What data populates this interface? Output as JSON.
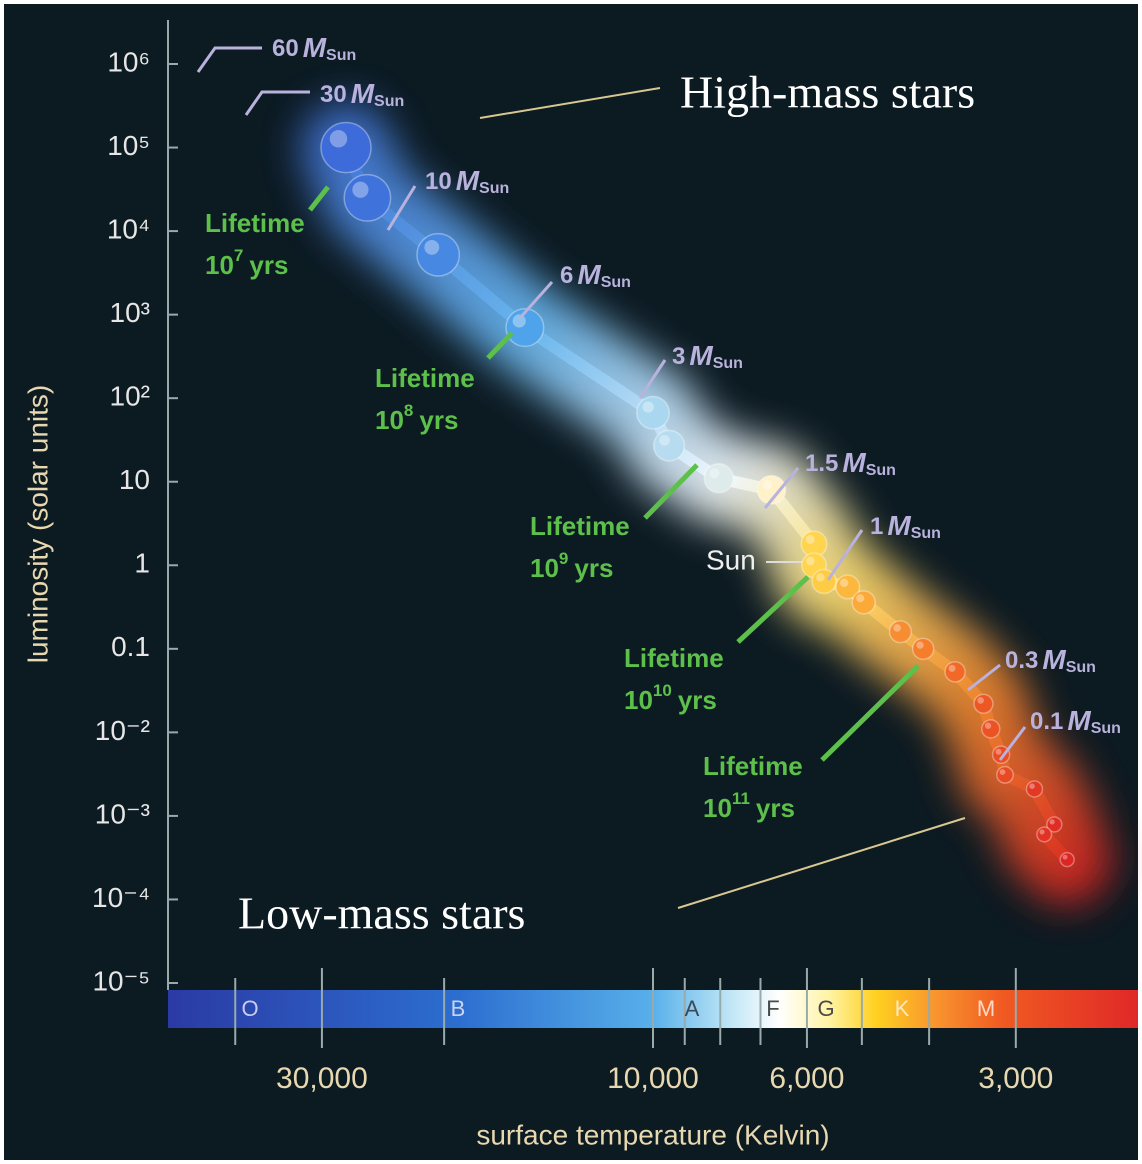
{
  "chart_data": {
    "type": "scatter",
    "x_label": "surface temperature (Kelvin)",
    "y_label": "luminosity (solar units)",
    "xscale": "log",
    "yscale": "log",
    "xlim": [
      50000,
      2000
    ],
    "ylim": [
      1e-05,
      1000000
    ],
    "xticks": [
      {
        "value": 30000,
        "label": "30,000"
      },
      {
        "value": 10000,
        "label": "10,000"
      },
      {
        "value": 6000,
        "label": "6,000"
      },
      {
        "value": 3000,
        "label": "3,000"
      }
    ],
    "minor_xticks": [
      40000,
      20000,
      9000,
      8000,
      7000,
      5000,
      4000
    ],
    "yticks": [
      {
        "value": 1000000,
        "label": "10⁶"
      },
      {
        "value": 100000,
        "label": "10⁵"
      },
      {
        "value": 10000,
        "label": "10⁴"
      },
      {
        "value": 1000,
        "label": "10³"
      },
      {
        "value": 100,
        "label": "10²"
      },
      10,
      1,
      0.1,
      {
        "value": 0.01,
        "label": "10⁻²"
      },
      {
        "value": 0.001,
        "label": "10⁻³"
      },
      {
        "value": 0.0001,
        "label": "10⁻⁴"
      },
      {
        "value": 1e-05,
        "label": "10⁻⁵"
      }
    ],
    "x": [
      27700,
      25800,
      20400,
      15300,
      10000,
      9480,
      8040,
      6750,
      5860,
      5860,
      5670,
      5240,
      4970,
      4400,
      4080,
      3670,
      3340,
      3260,
      3150,
      3110,
      2820,
      2640,
      2730,
      2530
    ],
    "values": [
      100000,
      25000,
      5200,
      700,
      67,
      27,
      11,
      8,
      1.8,
      1,
      0.64,
      0.55,
      0.36,
      0.16,
      0.1,
      0.053,
      0.022,
      0.011,
      0.0054,
      0.0031,
      0.0021,
      0.00079,
      0.0006,
      0.0003
    ],
    "spectral_classes": [
      "O",
      "B",
      "A",
      "F",
      "G",
      "K",
      "M"
    ],
    "annotations": [
      "High-mass stars",
      "Low-mass stars",
      "Sun"
    ],
    "mass_labels": [
      "60",
      "30",
      "10",
      "6",
      "3",
      "1.5",
      "1",
      "0.3",
      "0.1"
    ],
    "mass_unit": "M",
    "mass_unit_sub": "Sun",
    "lifetime_label": "Lifetime",
    "lifetime_base": "10",
    "lifetime_exponents": [
      "7",
      "8",
      "9",
      "10",
      "11"
    ],
    "lifetime_unit": "yrs"
  }
}
